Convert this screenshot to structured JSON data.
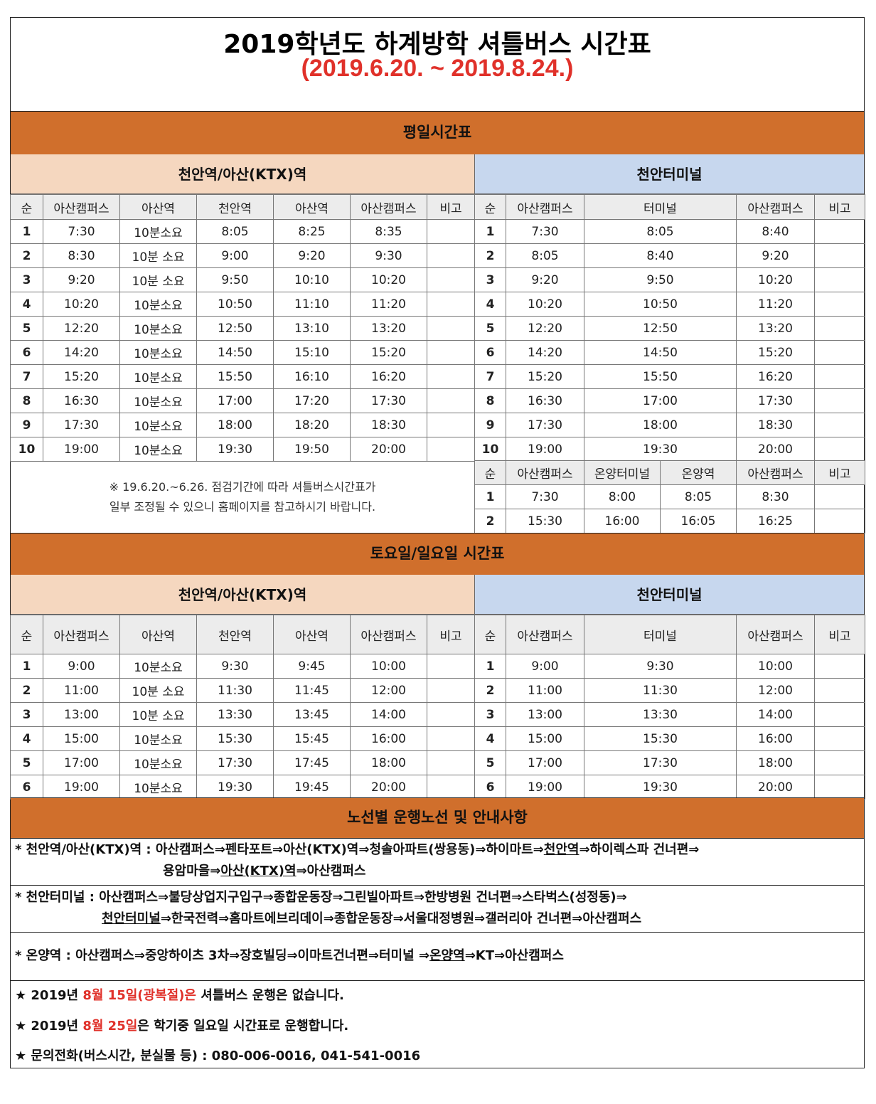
{
  "title": "2019학년도 하계방학 셔틀버스 시간표",
  "period": "(2019.6.20. ~ 2019.8.24.)",
  "weekday": {
    "band": "평일시간표",
    "ktx": {
      "label": "천안역/아산(KTX)역",
      "headers": [
        "순",
        "아산캠퍼스",
        "아산역",
        "천안역",
        "아산역",
        "아산캠퍼스",
        "비고"
      ],
      "rows": [
        [
          "1",
          "7:30",
          "10분소요",
          "8:05",
          "8:25",
          "8:35",
          ""
        ],
        [
          "2",
          "8:30",
          "10분 소요",
          "9:00",
          "9:20",
          "9:30",
          ""
        ],
        [
          "3",
          "9:20",
          "10분 소요",
          "9:50",
          "10:10",
          "10:20",
          ""
        ],
        [
          "4",
          "10:20",
          "10분소요",
          "10:50",
          "11:10",
          "11:20",
          ""
        ],
        [
          "5",
          "12:20",
          "10분소요",
          "12:50",
          "13:10",
          "13:20",
          ""
        ],
        [
          "6",
          "14:20",
          "10분소요",
          "14:50",
          "15:10",
          "15:20",
          ""
        ],
        [
          "7",
          "15:20",
          "10분소요",
          "15:50",
          "16:10",
          "16:20",
          ""
        ],
        [
          "8",
          "16:30",
          "10분소요",
          "17:00",
          "17:20",
          "17:30",
          ""
        ],
        [
          "9",
          "17:30",
          "10분소요",
          "18:00",
          "18:20",
          "18:30",
          ""
        ],
        [
          "10",
          "19:00",
          "10분소요",
          "19:30",
          "19:50",
          "20:00",
          ""
        ]
      ]
    },
    "terminal": {
      "label": "천안터미널",
      "headers": [
        "순",
        "아산캠퍼스",
        "터미널",
        "아산캠퍼스",
        "비고"
      ],
      "rows": [
        [
          "1",
          "7:30",
          "8:05",
          "8:40",
          ""
        ],
        [
          "2",
          "8:05",
          "8:40",
          "9:20",
          ""
        ],
        [
          "3",
          "9:20",
          "9:50",
          "10:20",
          ""
        ],
        [
          "4",
          "10:20",
          "10:50",
          "11:20",
          ""
        ],
        [
          "5",
          "12:20",
          "12:50",
          "13:20",
          ""
        ],
        [
          "6",
          "14:20",
          "14:50",
          "15:20",
          ""
        ],
        [
          "7",
          "15:20",
          "15:50",
          "16:20",
          ""
        ],
        [
          "8",
          "16:30",
          "17:00",
          "17:30",
          ""
        ],
        [
          "9",
          "17:30",
          "18:00",
          "18:30",
          ""
        ],
        [
          "10",
          "19:00",
          "19:30",
          "20:00",
          ""
        ]
      ]
    },
    "onyang": {
      "headers": [
        "순",
        "아산캠퍼스",
        "온양터미널",
        "온양역",
        "아산캠퍼스",
        "비고"
      ],
      "rows": [
        [
          "1",
          "7:30",
          "8:00",
          "8:05",
          "8:30",
          ""
        ],
        [
          "2",
          "15:30",
          "16:00",
          "16:05",
          "16:25",
          ""
        ]
      ]
    },
    "note_line1": "※ 19.6.20.~6.26. 점검기간에 따라 셔틀버스시간표가",
    "note_line2": "일부 조정될 수 있으니 홈페이지를 참고하시기 바랍니다."
  },
  "weekend": {
    "band": "토요일/일요일 시간표",
    "ktx": {
      "label": "천안역/아산(KTX)역",
      "headers": [
        "순",
        "아산캠퍼스",
        "아산역",
        "천안역",
        "아산역",
        "아산캠퍼스",
        "비고"
      ],
      "rows": [
        [
          "1",
          "9:00",
          "10분소요",
          "9:30",
          "9:45",
          "10:00",
          ""
        ],
        [
          "2",
          "11:00",
          "10분 소요",
          "11:30",
          "11:45",
          "12:00",
          ""
        ],
        [
          "3",
          "13:00",
          "10분 소요",
          "13:30",
          "13:45",
          "14:00",
          ""
        ],
        [
          "4",
          "15:00",
          "10분소요",
          "15:30",
          "15:45",
          "16:00",
          ""
        ],
        [
          "5",
          "17:00",
          "10분소요",
          "17:30",
          "17:45",
          "18:00",
          ""
        ],
        [
          "6",
          "19:00",
          "10분소요",
          "19:30",
          "19:45",
          "20:00",
          ""
        ]
      ]
    },
    "terminal": {
      "label": "천안터미널",
      "headers": [
        "순",
        "아산캠퍼스",
        "터미널",
        "아산캠퍼스",
        "비고"
      ],
      "rows": [
        [
          "1",
          "9:00",
          "9:30",
          "10:00",
          ""
        ],
        [
          "2",
          "11:00",
          "11:30",
          "12:00",
          ""
        ],
        [
          "3",
          "13:00",
          "13:30",
          "14:00",
          ""
        ],
        [
          "4",
          "15:00",
          "15:30",
          "16:00",
          ""
        ],
        [
          "5",
          "17:00",
          "17:30",
          "18:00",
          ""
        ],
        [
          "6",
          "19:00",
          "19:30",
          "20:00",
          ""
        ]
      ]
    }
  },
  "routes": {
    "band": "노선별 운행노선 및 안내사항",
    "ktx": {
      "prefix": "* 천안역/아산(KTX)역 :  ",
      "line1a": "아산캠퍼스⇒펜타포트⇒아산(KTX)역⇒청솔아파트(쌍용동)⇒하이마트⇒",
      "line1u": "천안역",
      "line1b": "⇒하이렉스파 건너편⇒",
      "line2a": "용암마을⇒",
      "line2u": "아산(KTX)역",
      "line2b": "⇒아산캠퍼스"
    },
    "terminal": {
      "line1": "* 천안터미널 : 아산캠퍼스⇒불당상업지구입구⇒종합운동장⇒그린빌아파트⇒한방병원 건너편⇒스타벅스(성정동)⇒",
      "line2u": "천안터미널",
      "line2b": "⇒한국전력⇒홈마트에브리데이⇒종합운동장⇒서울대정병원⇒갤러리아 건너편⇒아산캠퍼스"
    },
    "onyang": {
      "line_a": "* 온양역 :  아산캠퍼스⇒중앙하이츠 3차⇒장호빌딩⇒이마트건너편⇒터미널 ⇒",
      "line_u": "온양역",
      "line_b": "⇒KT⇒아산캠퍼스"
    }
  },
  "notices": {
    "n1_a": "★ 2019년 ",
    "n1_red": "8월 15일(광복절)은",
    "n1_b": " 셔틀버스 운행은 없습니다.",
    "n2_a": "★ 2019년 ",
    "n2_red": "8월 25일",
    "n2_b": "은 학기중 일요일 시간표로 운행합니다.",
    "n3": "★ 문의전화(버스시간, 분실물 등) : 080-006-0016, 041-541-0016"
  }
}
